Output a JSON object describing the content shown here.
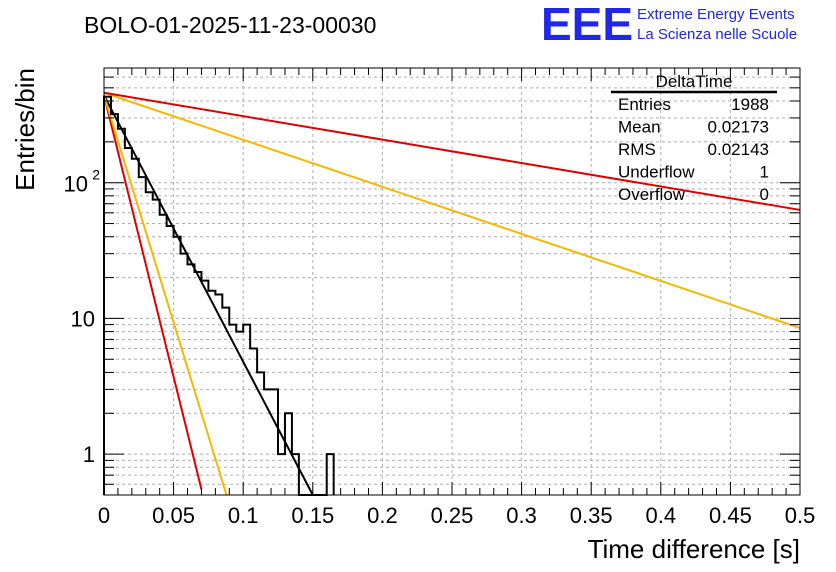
{
  "chart_data": {
    "type": "histogram",
    "title": "BOLO-01-2025-11-23-00030",
    "xlabel": "Time difference [s]",
    "ylabel": "Entries/bin",
    "xlim": [
      0,
      0.5
    ],
    "ylim": [
      0.5,
      700
    ],
    "yscale": "log",
    "x_ticks": [
      0,
      0.05,
      0.1,
      0.15,
      0.2,
      0.25,
      0.3,
      0.35,
      0.4,
      0.45,
      0.5
    ],
    "x_tick_labels": [
      "0",
      "0.05",
      "0.1",
      "0.15",
      "0.2",
      "0.25",
      "0.3",
      "0.35",
      "0.4",
      "0.45",
      "0.5"
    ],
    "y_major_ticks": [
      1,
      10,
      100
    ],
    "y_major_labels": [
      "1",
      "10",
      "10^2"
    ],
    "grid": true,
    "bin_width": 0.005,
    "bin_counts": [
      430,
      320,
      250,
      180,
      150,
      110,
      85,
      75,
      58,
      48,
      40,
      30,
      25,
      22,
      19,
      16,
      15,
      12,
      9,
      8,
      9,
      6,
      4,
      3,
      3,
      1,
      2,
      1,
      0.5,
      0.5,
      0.5,
      0.5,
      1
    ],
    "fits": [
      {
        "name": "black-fit",
        "color": "#000000",
        "x0": 0.0,
        "y0": 440,
        "x1": 0.15,
        "y1": 0.5
      },
      {
        "name": "red-steep",
        "color": "#dd0000",
        "x0": 0.0,
        "y0": 440,
        "x1": 0.07,
        "y1": 0.55
      },
      {
        "name": "yellow-steep",
        "color": "#f5b800",
        "x0": 0.0,
        "y0": 440,
        "x1": 0.088,
        "y1": 0.5
      },
      {
        "name": "yellow-shallow",
        "color": "#f5b800",
        "x0": 0.0,
        "y0": 460,
        "x1": 0.5,
        "y1": 8.5
      },
      {
        "name": "red-shallow",
        "color": "#dd0000",
        "x0": 0.0,
        "y0": 460,
        "x1": 0.5,
        "y1": 63
      }
    ]
  },
  "logo": {
    "letters": "EEE",
    "line1": "Extreme Energy Events",
    "line2": "La Scienza nelle Scuole",
    "color": "#1f27e8"
  },
  "stats": {
    "title": "DeltaTime",
    "rows": [
      {
        "label": "Entries",
        "value": "1988"
      },
      {
        "label": "Mean",
        "value": "0.02173"
      },
      {
        "label": "RMS",
        "value": "0.02143"
      },
      {
        "label": "Underflow",
        "value": "1"
      },
      {
        "label": "Overflow",
        "value": "0"
      }
    ]
  }
}
